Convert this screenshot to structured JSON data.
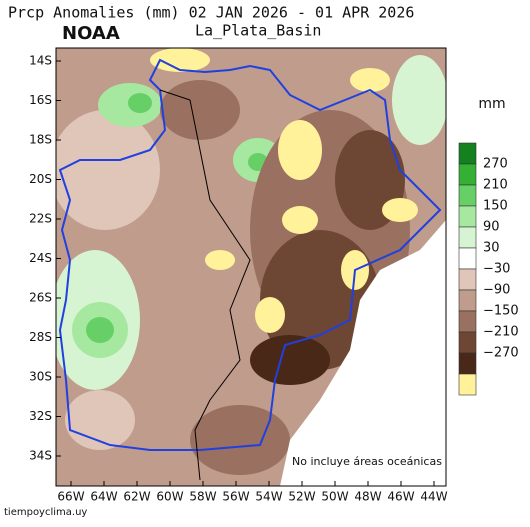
{
  "header": {
    "title": "Prcp Anomalies (mm) 02 JAN 2026 - 01 APR 2026",
    "agency": "NOAA",
    "region": "La_Plata_Basin"
  },
  "map": {
    "lat_labels": [
      "14S",
      "16S",
      "18S",
      "20S",
      "22S",
      "24S",
      "26S",
      "28S",
      "30S",
      "32S",
      "34S"
    ],
    "lon_labels": [
      "66W",
      "64W",
      "62W",
      "60W",
      "58W",
      "56W",
      "54W",
      "52W",
      "50W",
      "48W",
      "46W",
      "44W"
    ],
    "note": "No incluye áreas oceánicas"
  },
  "legend": {
    "unit": "mm",
    "colors": [
      "#14801e",
      "#34b034",
      "#66d066",
      "#a6e8a0",
      "#d6f4d2",
      "#ffffff",
      "#dfc6b8",
      "#bf9c8c",
      "#9a7060",
      "#6e4634",
      "#4a2818",
      "#fff29a"
    ],
    "ticks": [
      270,
      210,
      150,
      90,
      30,
      {
        "value": -30,
        "label": "−30"
      },
      {
        "value": -90,
        "label": "−90"
      },
      {
        "value": -150,
        "label": "−150"
      },
      {
        "value": -210,
        "label": "−210"
      },
      {
        "value": -270,
        "label": "−270"
      }
    ]
  },
  "footer": {
    "source": "tiempoyclima.uy"
  }
}
